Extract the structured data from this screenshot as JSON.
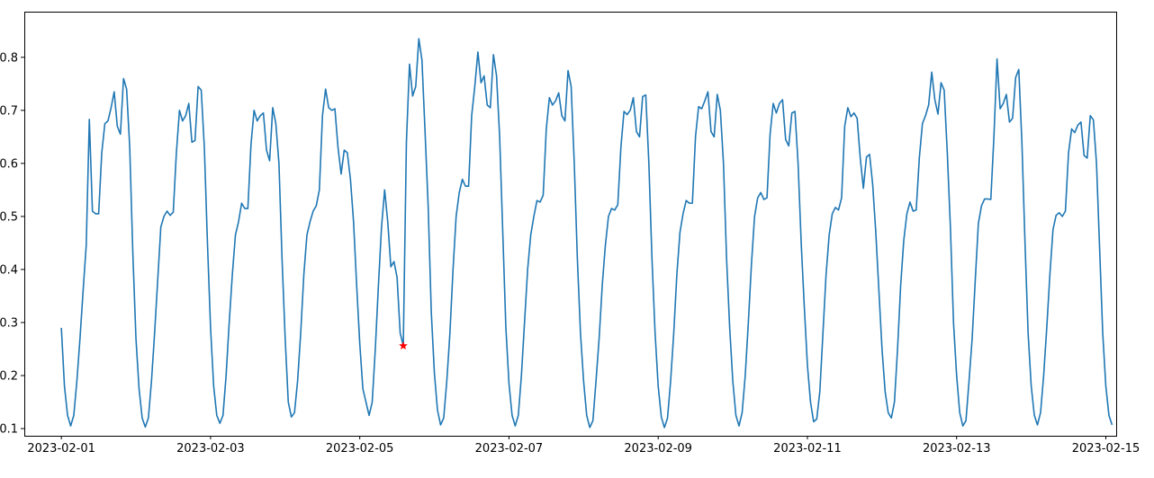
{
  "chart_data": {
    "type": "line",
    "title": "",
    "xlabel": "",
    "ylabel": "",
    "x_start": "2023-02-01T00:00",
    "x_step_hours": 1,
    "xlim": [
      "2023-01-31T12:05",
      "2023-02-15T03:20"
    ],
    "ylim": [
      0.0865,
      0.886
    ],
    "grid": false,
    "line_color": "#1f77b4",
    "marker_color": "#ff0000",
    "x_ticks": [
      "2023-02-01",
      "2023-02-03",
      "2023-02-05",
      "2023-02-07",
      "2023-02-09",
      "2023-02-11",
      "2023-02-13",
      "2023-02-15"
    ],
    "y_ticks": [
      0.1,
      0.2,
      0.3,
      0.4,
      0.5,
      0.6,
      0.7,
      0.8
    ],
    "y_tick_labels": [
      "0.1",
      "0.2",
      "0.3",
      "0.4",
      "0.5",
      "0.6",
      "0.7",
      "0.8"
    ],
    "highlight_point": {
      "x": "2023-02-05T14:00",
      "y": 0.256,
      "marker": "star"
    },
    "values": [
      0.29,
      0.18,
      0.125,
      0.105,
      0.125,
      0.19,
      0.27,
      0.36,
      0.445,
      0.683,
      0.51,
      0.505,
      0.505,
      0.62,
      0.675,
      0.68,
      0.705,
      0.735,
      0.67,
      0.655,
      0.76,
      0.74,
      0.63,
      0.43,
      0.27,
      0.175,
      0.12,
      0.103,
      0.12,
      0.19,
      0.28,
      0.38,
      0.48,
      0.5,
      0.51,
      0.502,
      0.508,
      0.62,
      0.7,
      0.68,
      0.69,
      0.713,
      0.64,
      0.643,
      0.745,
      0.738,
      0.63,
      0.45,
      0.29,
      0.18,
      0.125,
      0.11,
      0.125,
      0.2,
      0.3,
      0.39,
      0.465,
      0.49,
      0.525,
      0.515,
      0.515,
      0.635,
      0.7,
      0.68,
      0.69,
      0.695,
      0.625,
      0.605,
      0.705,
      0.675,
      0.6,
      0.42,
      0.27,
      0.15,
      0.122,
      0.13,
      0.19,
      0.28,
      0.39,
      0.465,
      0.49,
      0.51,
      0.52,
      0.55,
      0.69,
      0.74,
      0.705,
      0.7,
      0.703,
      0.63,
      0.58,
      0.625,
      0.62,
      0.57,
      0.49,
      0.37,
      0.26,
      0.175,
      0.15,
      0.125,
      0.15,
      0.25,
      0.37,
      0.48,
      0.55,
      0.49,
      0.405,
      0.415,
      0.385,
      0.28,
      0.256,
      0.64,
      0.787,
      0.727,
      0.745,
      0.835,
      0.795,
      0.66,
      0.52,
      0.32,
      0.205,
      0.135,
      0.107,
      0.12,
      0.19,
      0.28,
      0.4,
      0.5,
      0.545,
      0.57,
      0.557,
      0.557,
      0.69,
      0.745,
      0.81,
      0.752,
      0.765,
      0.71,
      0.705,
      0.805,
      0.765,
      0.65,
      0.47,
      0.29,
      0.185,
      0.125,
      0.105,
      0.125,
      0.2,
      0.3,
      0.4,
      0.465,
      0.5,
      0.53,
      0.527,
      0.54,
      0.665,
      0.724,
      0.71,
      0.718,
      0.733,
      0.69,
      0.68,
      0.775,
      0.745,
      0.6,
      0.42,
      0.28,
      0.19,
      0.125,
      0.102,
      0.115,
      0.19,
      0.27,
      0.37,
      0.445,
      0.5,
      0.515,
      0.512,
      0.522,
      0.63,
      0.698,
      0.692,
      0.7,
      0.724,
      0.66,
      0.65,
      0.726,
      0.729,
      0.6,
      0.42,
      0.28,
      0.18,
      0.122,
      0.102,
      0.12,
      0.19,
      0.28,
      0.39,
      0.47,
      0.505,
      0.53,
      0.525,
      0.525,
      0.65,
      0.707,
      0.703,
      0.718,
      0.735,
      0.66,
      0.65,
      0.73,
      0.7,
      0.6,
      0.42,
      0.29,
      0.19,
      0.125,
      0.105,
      0.13,
      0.2,
      0.3,
      0.41,
      0.5,
      0.535,
      0.545,
      0.532,
      0.535,
      0.655,
      0.713,
      0.695,
      0.713,
      0.72,
      0.645,
      0.633,
      0.695,
      0.698,
      0.6,
      0.45,
      0.33,
      0.22,
      0.15,
      0.113,
      0.118,
      0.17,
      0.28,
      0.39,
      0.465,
      0.505,
      0.517,
      0.512,
      0.535,
      0.67,
      0.705,
      0.688,
      0.695,
      0.685,
      0.61,
      0.553,
      0.612,
      0.617,
      0.56,
      0.47,
      0.36,
      0.25,
      0.17,
      0.13,
      0.12,
      0.15,
      0.25,
      0.37,
      0.455,
      0.505,
      0.527,
      0.51,
      0.512,
      0.61,
      0.675,
      0.69,
      0.71,
      0.772,
      0.72,
      0.693,
      0.752,
      0.738,
      0.62,
      0.48,
      0.3,
      0.2,
      0.13,
      0.105,
      0.115,
      0.19,
      0.27,
      0.38,
      0.487,
      0.52,
      0.533,
      0.533,
      0.532,
      0.65,
      0.797,
      0.703,
      0.713,
      0.73,
      0.678,
      0.685,
      0.762,
      0.777,
      0.64,
      0.45,
      0.28,
      0.18,
      0.125,
      0.107,
      0.13,
      0.2,
      0.29,
      0.39,
      0.475,
      0.502,
      0.507,
      0.5,
      0.51,
      0.62,
      0.665,
      0.658,
      0.672,
      0.678,
      0.615,
      0.61,
      0.69,
      0.682,
      0.6,
      0.44,
      0.28,
      0.18,
      0.125,
      0.107
    ]
  }
}
